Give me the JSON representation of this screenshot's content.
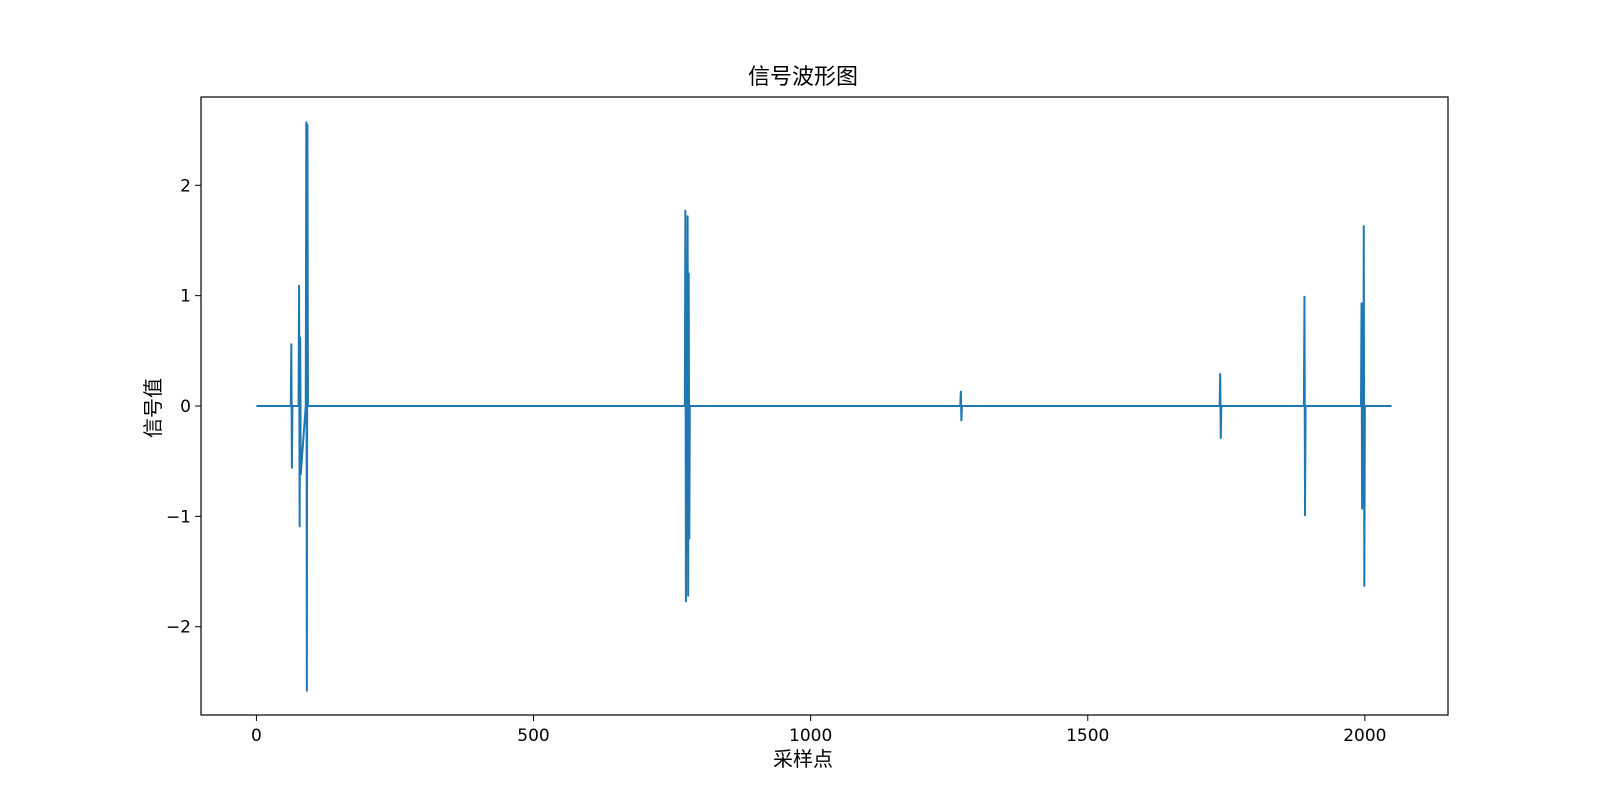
{
  "chart_data": {
    "type": "line",
    "title": "信号波形图",
    "xlabel": "采样点",
    "ylabel": "信号值",
    "xlim": [
      -100,
      2150
    ],
    "ylim": [
      -2.8,
      2.8
    ],
    "xticks": [
      0,
      500,
      1000,
      1500,
      2000
    ],
    "yticks": [
      -2,
      -1,
      0,
      1,
      2
    ],
    "ytick_labels": [
      "−2",
      "−1",
      "0",
      "1",
      "2"
    ],
    "grid": false,
    "line_color": "#1f77b4",
    "series": [
      {
        "x": [
          0,
          62,
          63,
          64,
          65,
          76,
          77,
          78,
          79,
          80,
          89,
          90,
          91,
          92,
          93,
          773,
          774,
          775,
          776,
          777,
          778,
          779,
          780,
          781,
          782,
          1270,
          1271,
          1272,
          1273,
          1738,
          1739,
          1740,
          1741,
          1890,
          1891,
          1892,
          1893,
          1993,
          1994,
          1995,
          1996,
          1997,
          1998,
          1999,
          2000,
          2048
        ],
        "y": [
          0,
          0,
          0.56,
          -0.56,
          0,
          0,
          1.09,
          -1.09,
          0.62,
          -0.62,
          0,
          2.57,
          -2.58,
          2.55,
          0,
          0,
          1.77,
          -1.77,
          1.33,
          -1.33,
          1.72,
          -1.72,
          1.2,
          -1.2,
          0,
          0,
          0.13,
          -0.13,
          0,
          0,
          0.29,
          -0.29,
          0,
          0,
          0.99,
          -0.99,
          0,
          0,
          0.93,
          -0.93,
          0.9,
          -0.9,
          1.63,
          -1.63,
          0,
          0
        ]
      }
    ]
  }
}
